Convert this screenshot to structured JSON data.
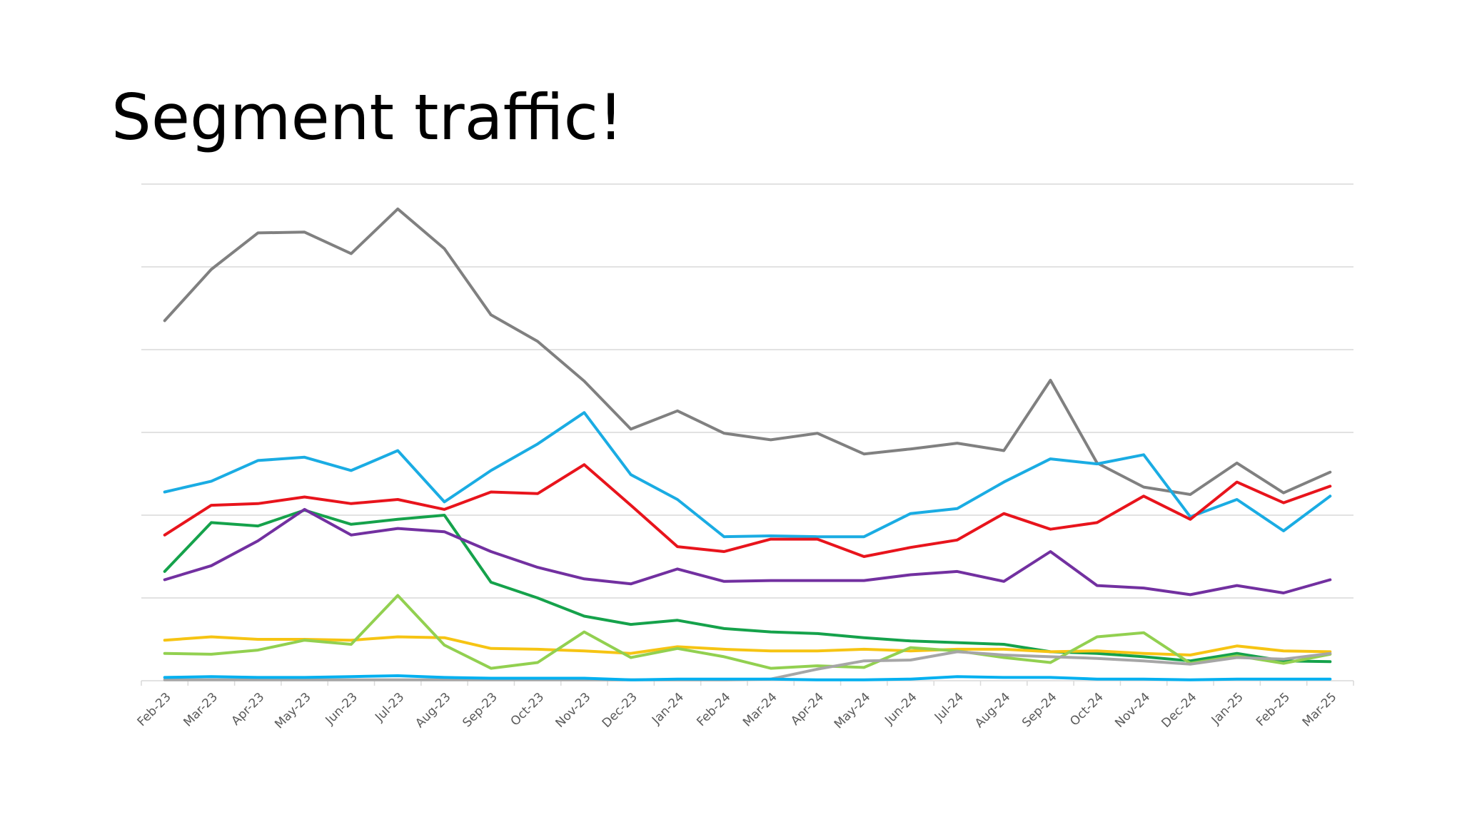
{
  "slide": {
    "title": "Segment traffic!"
  },
  "chart_data": {
    "type": "line",
    "title": "",
    "xlabel": "",
    "ylabel": "",
    "grid": true,
    "y_axis_labels_visible": false,
    "legend": "none",
    "ylim": [
      0,
      6
    ],
    "categories": [
      "Feb-23",
      "Mar-23",
      "Apr-23",
      "May-23",
      "Jun-23",
      "Jul-23",
      "Aug-23",
      "Sep-23",
      "Oct-23",
      "Nov-23",
      "Dec-23",
      "Jan-24",
      "Feb-24",
      "Mar-24",
      "Apr-24",
      "May-24",
      "Jun-24",
      "Jul-24",
      "Aug-24",
      "Sep-24",
      "Oct-24",
      "Nov-24",
      "Dec-24",
      "Jan-25",
      "Feb-25",
      "Mar-25"
    ],
    "series": [
      {
        "color": "#808080",
        "values": [
          4.35,
          4.97,
          5.41,
          5.42,
          5.16,
          5.7,
          5.22,
          4.42,
          4.1,
          3.62,
          3.04,
          3.26,
          2.99,
          2.91,
          2.99,
          2.74,
          2.8,
          2.87,
          2.78,
          3.63,
          2.63,
          2.34,
          2.25,
          2.63,
          2.27,
          2.52
        ]
      },
      {
        "color": "#1AACE3",
        "values": [
          2.28,
          2.41,
          2.66,
          2.7,
          2.54,
          2.78,
          2.16,
          2.54,
          2.86,
          3.24,
          2.49,
          2.19,
          1.74,
          1.75,
          1.74,
          1.74,
          2.02,
          2.08,
          2.4,
          2.68,
          2.62,
          2.73,
          1.98,
          2.19,
          1.81,
          2.23
        ]
      },
      {
        "color": "#E8141C",
        "values": [
          1.76,
          2.12,
          2.14,
          2.22,
          2.14,
          2.19,
          2.07,
          2.28,
          2.26,
          2.61,
          2.12,
          1.62,
          1.56,
          1.71,
          1.71,
          1.5,
          1.61,
          1.7,
          2.02,
          1.83,
          1.91,
          2.23,
          1.95,
          2.4,
          2.15,
          2.35
        ]
      },
      {
        "color": "#15A24B",
        "values": [
          1.32,
          1.91,
          1.87,
          2.06,
          1.89,
          1.95,
          2.0,
          1.19,
          1.0,
          0.78,
          0.68,
          0.73,
          0.63,
          0.59,
          0.57,
          0.52,
          0.48,
          0.46,
          0.44,
          0.35,
          0.33,
          0.29,
          0.24,
          0.33,
          0.24,
          0.23
        ]
      },
      {
        "color": "#7230A0",
        "values": [
          1.22,
          1.39,
          1.69,
          2.07,
          1.76,
          1.84,
          1.8,
          1.56,
          1.37,
          1.23,
          1.17,
          1.35,
          1.2,
          1.21,
          1.21,
          1.21,
          1.28,
          1.32,
          1.2,
          1.56,
          1.15,
          1.12,
          1.04,
          1.15,
          1.06,
          1.22
        ]
      },
      {
        "color": "#F6C413",
        "values": [
          0.49,
          0.53,
          0.5,
          0.5,
          0.49,
          0.53,
          0.52,
          0.39,
          0.38,
          0.36,
          0.33,
          0.41,
          0.38,
          0.36,
          0.36,
          0.38,
          0.36,
          0.38,
          0.38,
          0.35,
          0.36,
          0.33,
          0.31,
          0.42,
          0.36,
          0.35
        ]
      },
      {
        "color": "#92D050",
        "values": [
          0.33,
          0.32,
          0.37,
          0.49,
          0.44,
          1.03,
          0.43,
          0.15,
          0.22,
          0.59,
          0.28,
          0.39,
          0.29,
          0.15,
          0.18,
          0.16,
          0.4,
          0.36,
          0.28,
          0.22,
          0.53,
          0.58,
          0.21,
          0.3,
          0.21,
          0.32
        ]
      },
      {
        "color": "#A6A6A6",
        "values": [
          0.01,
          0.01,
          0.01,
          0.01,
          0.01,
          0.01,
          0.01,
          0.01,
          0.01,
          0.01,
          0.01,
          0.01,
          0.01,
          0.02,
          0.14,
          0.24,
          0.25,
          0.35,
          0.31,
          0.29,
          0.27,
          0.24,
          0.2,
          0.28,
          0.26,
          0.33
        ]
      },
      {
        "color": "#00B0F0",
        "values": [
          0.04,
          0.05,
          0.04,
          0.04,
          0.05,
          0.06,
          0.04,
          0.03,
          0.03,
          0.03,
          0.01,
          0.02,
          0.02,
          0.02,
          0.01,
          0.01,
          0.02,
          0.05,
          0.04,
          0.04,
          0.02,
          0.02,
          0.01,
          0.02,
          0.02,
          0.02
        ]
      }
    ]
  }
}
